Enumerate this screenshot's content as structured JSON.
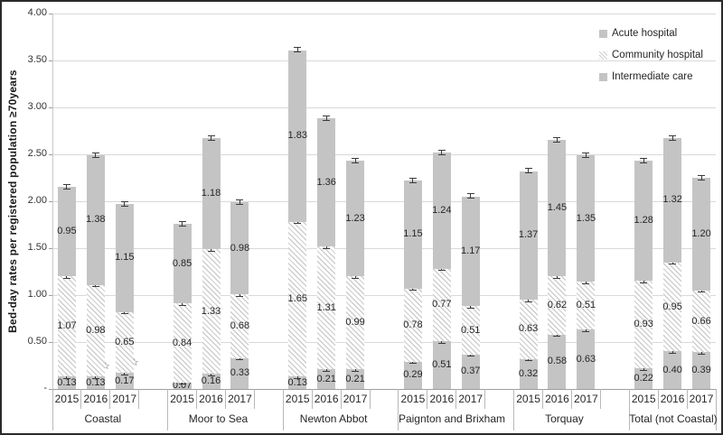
{
  "chart_data": {
    "type": "bar",
    "stacked": true,
    "title": "",
    "ylabel": "Bed-day rates per registered population ≥70years",
    "xlabel": "",
    "ylim": [
      0,
      4.0
    ],
    "ytick_step": 0.5,
    "ytick_labels": [
      "-",
      "0.50",
      "1.00",
      "1.50",
      "2.00",
      "2.50",
      "3.00",
      "3.50",
      "4.00"
    ],
    "grid": true,
    "error_bars": true,
    "star_glyph": "☆",
    "legend": {
      "position": "top-right",
      "entries": [
        {
          "label": "Acute hospital",
          "style": "solid"
        },
        {
          "label": "Community hospital",
          "style": "hatch"
        },
        {
          "label": "Intermediate care",
          "style": "solid"
        }
      ]
    },
    "series_bottom_to_top": [
      {
        "key": "intermediate_care",
        "name": "Intermediate care",
        "style": "solid"
      },
      {
        "key": "community_hospital",
        "name": "Community hospital",
        "style": "hatch"
      },
      {
        "key": "acute_hospital",
        "name": "Acute hospital",
        "style": "solid"
      }
    ],
    "groups": [
      {
        "label": "Coastal",
        "bars": [
          {
            "year": "2015",
            "intermediate_care": 0.13,
            "community_hospital": 1.07,
            "acute_hospital": 0.95,
            "star": false
          },
          {
            "year": "2016",
            "intermediate_care": 0.13,
            "community_hospital": 0.98,
            "acute_hospital": 1.38,
            "star": true
          },
          {
            "year": "2017",
            "intermediate_care": 0.17,
            "community_hospital": 0.65,
            "acute_hospital": 1.15,
            "star": true
          }
        ]
      },
      {
        "label": "Moor to Sea",
        "bars": [
          {
            "year": "2015",
            "intermediate_care": 0.07,
            "community_hospital": 0.84,
            "acute_hospital": 0.85,
            "star": false
          },
          {
            "year": "2016",
            "intermediate_care": 0.16,
            "community_hospital": 1.33,
            "acute_hospital": 1.18,
            "star": false
          },
          {
            "year": "2017",
            "intermediate_care": 0.33,
            "community_hospital": 0.68,
            "acute_hospital": 0.98,
            "star": false
          }
        ]
      },
      {
        "label": "Newton Abbot",
        "bars": [
          {
            "year": "2015",
            "intermediate_care": 0.13,
            "community_hospital": 1.65,
            "acute_hospital": 1.83,
            "star": false
          },
          {
            "year": "2016",
            "intermediate_care": 0.21,
            "community_hospital": 1.31,
            "acute_hospital": 1.36,
            "star": false
          },
          {
            "year": "2017",
            "intermediate_care": 0.21,
            "community_hospital": 0.99,
            "acute_hospital": 1.23,
            "star": false
          }
        ]
      },
      {
        "label": "Paignton and Brixham",
        "bars": [
          {
            "year": "2015",
            "intermediate_care": 0.29,
            "community_hospital": 0.78,
            "acute_hospital": 1.15,
            "star": false
          },
          {
            "year": "2016",
            "intermediate_care": 0.51,
            "community_hospital": 0.77,
            "acute_hospital": 1.24,
            "star": false
          },
          {
            "year": "2017",
            "intermediate_care": 0.37,
            "community_hospital": 0.51,
            "acute_hospital": 1.17,
            "star": false
          }
        ]
      },
      {
        "label": "Torquay",
        "bars": [
          {
            "year": "2015",
            "intermediate_care": 0.32,
            "community_hospital": 0.63,
            "acute_hospital": 1.37,
            "star": false
          },
          {
            "year": "2016",
            "intermediate_care": 0.58,
            "community_hospital": 0.62,
            "acute_hospital": 1.45,
            "star": false
          },
          {
            "year": "2017",
            "intermediate_care": 0.63,
            "community_hospital": 0.51,
            "acute_hospital": 1.35,
            "star": false
          }
        ]
      },
      {
        "label": "Total (not Coastal)",
        "bars": [
          {
            "year": "2015",
            "intermediate_care": 0.22,
            "community_hospital": 0.93,
            "acute_hospital": 1.28,
            "star": false
          },
          {
            "year": "2016",
            "intermediate_care": 0.4,
            "community_hospital": 0.95,
            "acute_hospital": 1.32,
            "star": false
          },
          {
            "year": "2017",
            "intermediate_care": 0.39,
            "community_hospital": 0.66,
            "acute_hospital": 1.2,
            "star": false
          }
        ]
      }
    ],
    "colors": {
      "bar_fill": "#c4c4c4",
      "hatch_line": "#cecece",
      "hatch_bg": "#ffffff",
      "gridline": "#d9d9d9",
      "axis_line": "#9e9e9e",
      "text": "#262626"
    }
  }
}
